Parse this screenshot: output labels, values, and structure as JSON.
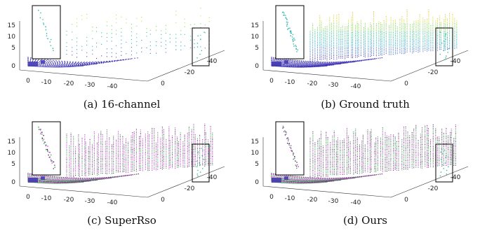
{
  "figure": {
    "panels": [
      {
        "caption": "(a) 16-channel",
        "scheme": "sparse"
      },
      {
        "caption": "(b) Ground truth",
        "scheme": "dense"
      },
      {
        "caption": "(c) SuperRso",
        "scheme": "superres"
      },
      {
        "caption": "(d) Ours",
        "scheme": "ours"
      }
    ],
    "z_ticks": [
      "15",
      "10",
      "5",
      "0"
    ],
    "x_ticks": [
      "0",
      "-10",
      "-20",
      "-30",
      "-40"
    ],
    "y_ticks": [
      "0",
      "-20",
      "-40"
    ]
  },
  "colors": {
    "axis": "#333333",
    "ground_purple": "#3a2fb0",
    "viridis": [
      "#3b2fae",
      "#3a6fd0",
      "#21a5c8",
      "#2fbf8f",
      "#7fd34e",
      "#d8d62b",
      "#f2b32a"
    ],
    "magenta": "#c23ac8",
    "green": "#2ea84a",
    "dark": "#4a2c5a"
  }
}
